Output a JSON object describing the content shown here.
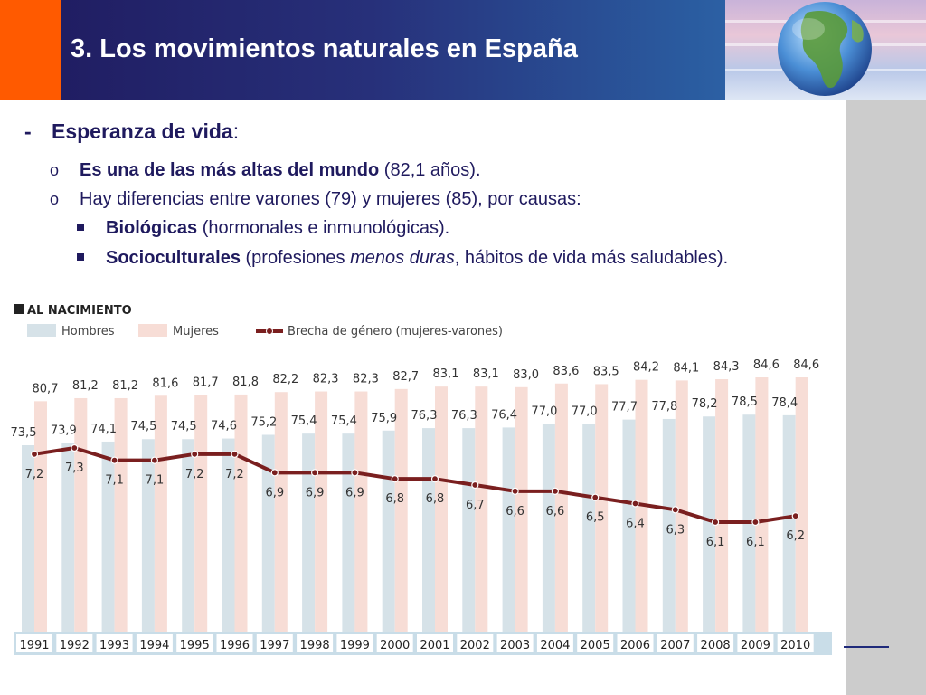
{
  "header": {
    "title": "3. Los movimientos naturales en España"
  },
  "content": {
    "heading_dash": "-",
    "heading_bold": "Esperanza de vida",
    "heading_rest": ":",
    "bullet_marker": "o",
    "bullet1_bold": "Es una de las más altas del mundo",
    "bullet1_rest": " (82,1 años).",
    "bullet2_text": "Hay diferencias entre varones (79) y mujeres (85), por causas:",
    "sub1_bold": "Biológicas",
    "sub1_rest": " (hormonales e inmunológicas).",
    "sub2_bold": "Socioculturales",
    "sub2_rest_a": " (profesiones ",
    "sub2_italic": "menos duras",
    "sub2_rest_b": ", hábitos de vida más saludables)."
  },
  "colors": {
    "hombres": "#d6e2e8",
    "mujeres": "#f7ddd6",
    "brecha": "#7a1f1f",
    "axis_strip": "#c9dde8"
  },
  "chart_data": {
    "type": "bar",
    "title": "AL NACIMIENTO",
    "legend": [
      "Hombres",
      "Mujeres",
      "Brecha de género (mujeres-varones)"
    ],
    "categories": [
      "1991",
      "1992",
      "1993",
      "1994",
      "1995",
      "1996",
      "1997",
      "1998",
      "1999",
      "2000",
      "2001",
      "2002",
      "2003",
      "2004",
      "2005",
      "2006",
      "2007",
      "2008",
      "2009",
      "2010"
    ],
    "series": [
      {
        "name": "Hombres",
        "kind": "bar",
        "values": [
          73.5,
          73.9,
          74.1,
          74.5,
          74.5,
          74.6,
          75.2,
          75.4,
          75.4,
          75.9,
          76.3,
          76.3,
          76.4,
          77.0,
          77.0,
          77.7,
          77.8,
          78.2,
          78.5,
          78.4
        ],
        "labels": [
          "73,5",
          "73,9",
          "74,1",
          "74,5",
          "74,5",
          "74,6",
          "75,2",
          "75,4",
          "75,4",
          "75,9",
          "76,3",
          "76,3",
          "76,4",
          "77,0",
          "77,0",
          "77,7",
          "77,8",
          "78,2",
          "78,5",
          "78,4"
        ]
      },
      {
        "name": "Mujeres",
        "kind": "bar",
        "values": [
          80.7,
          81.2,
          81.2,
          81.6,
          81.7,
          81.8,
          82.2,
          82.3,
          82.3,
          82.7,
          83.1,
          83.1,
          83.0,
          83.6,
          83.5,
          84.2,
          84.1,
          84.3,
          84.6,
          84.6
        ],
        "labels": [
          "80,7",
          "81,2",
          "81,2",
          "81,6",
          "81,7",
          "81,8",
          "82,2",
          "82,3",
          "82,3",
          "82,7",
          "83,1",
          "83,1",
          "83,0",
          "83,6",
          "83,5",
          "84,2",
          "84,1",
          "84,3",
          "84,6",
          "84,6"
        ]
      },
      {
        "name": "Brecha de género (mujeres-varones)",
        "kind": "line",
        "values": [
          7.2,
          7.3,
          7.1,
          7.1,
          7.2,
          7.2,
          6.9,
          6.9,
          6.9,
          6.8,
          6.8,
          6.7,
          6.6,
          6.6,
          6.5,
          6.4,
          6.3,
          6.1,
          6.1,
          6.2
        ],
        "labels": [
          "7,2",
          "7,3",
          "7,1",
          "7,1",
          "7,2",
          "7,2",
          "6,9",
          "6,9",
          "6,9",
          "6,8",
          "6,8",
          "6,7",
          "6,6",
          "6,6",
          "6,5",
          "6,4",
          "6,3",
          "6,1",
          "6,1",
          "6,2"
        ]
      }
    ],
    "grid": false,
    "legend_position": "top-left"
  }
}
